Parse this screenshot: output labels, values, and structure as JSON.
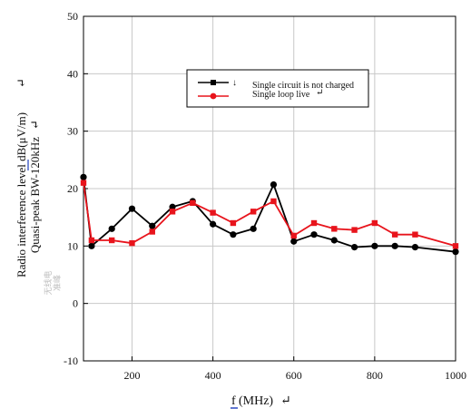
{
  "chart_data": {
    "type": "line",
    "x": [
      80,
      100,
      150,
      200,
      250,
      300,
      350,
      400,
      450,
      500,
      550,
      600,
      650,
      700,
      750,
      800,
      850,
      900,
      1000
    ],
    "series": [
      {
        "name": "Single circuit is not charged",
        "marker": "circle",
        "color": "#000000",
        "values": [
          22,
          10,
          13,
          16.5,
          13.5,
          16.8,
          17.8,
          13.8,
          12,
          13,
          20.7,
          10.8,
          12,
          11,
          9.8,
          10,
          10,
          9.8,
          9
        ]
      },
      {
        "name": "Single loop live",
        "marker": "square",
        "color": "#e8141c",
        "values": [
          21,
          11,
          11,
          10.5,
          12.5,
          16,
          17.5,
          15.8,
          14,
          16,
          17.8,
          11.8,
          14,
          13,
          12.8,
          14,
          12,
          12,
          10
        ]
      }
    ],
    "legend_marks": [
      "↓",
      "↵"
    ],
    "xlim": [
      80,
      1000
    ],
    "ylim": [
      -10,
      50
    ],
    "x_ticks": [
      200,
      400,
      600,
      800,
      1000
    ],
    "y_ticks": [
      -10,
      0,
      10,
      20,
      30,
      40,
      50
    ],
    "xlabel_prefix": "f",
    "xlabel_suffix": "(MHz)",
    "xlabel_mark": "↵",
    "ylabel_line1": "Radio interference level dB(μV/m)",
    "ylabel_line1_mark": "↵",
    "ylabel_line2": "Quasi-peak BW-120kHz",
    "ylabel_line2_mark": "↵",
    "ylabel_faint_line1": "无线电",
    "ylabel_faint_line2": "准峰",
    "grid": true,
    "legend_position": "top-right"
  },
  "colors": {
    "series_black": "#000000",
    "series_red": "#e8141c",
    "grid": "#c8c8c8",
    "legend_border": "#000000",
    "underline_blue": "#1f3fbf"
  }
}
